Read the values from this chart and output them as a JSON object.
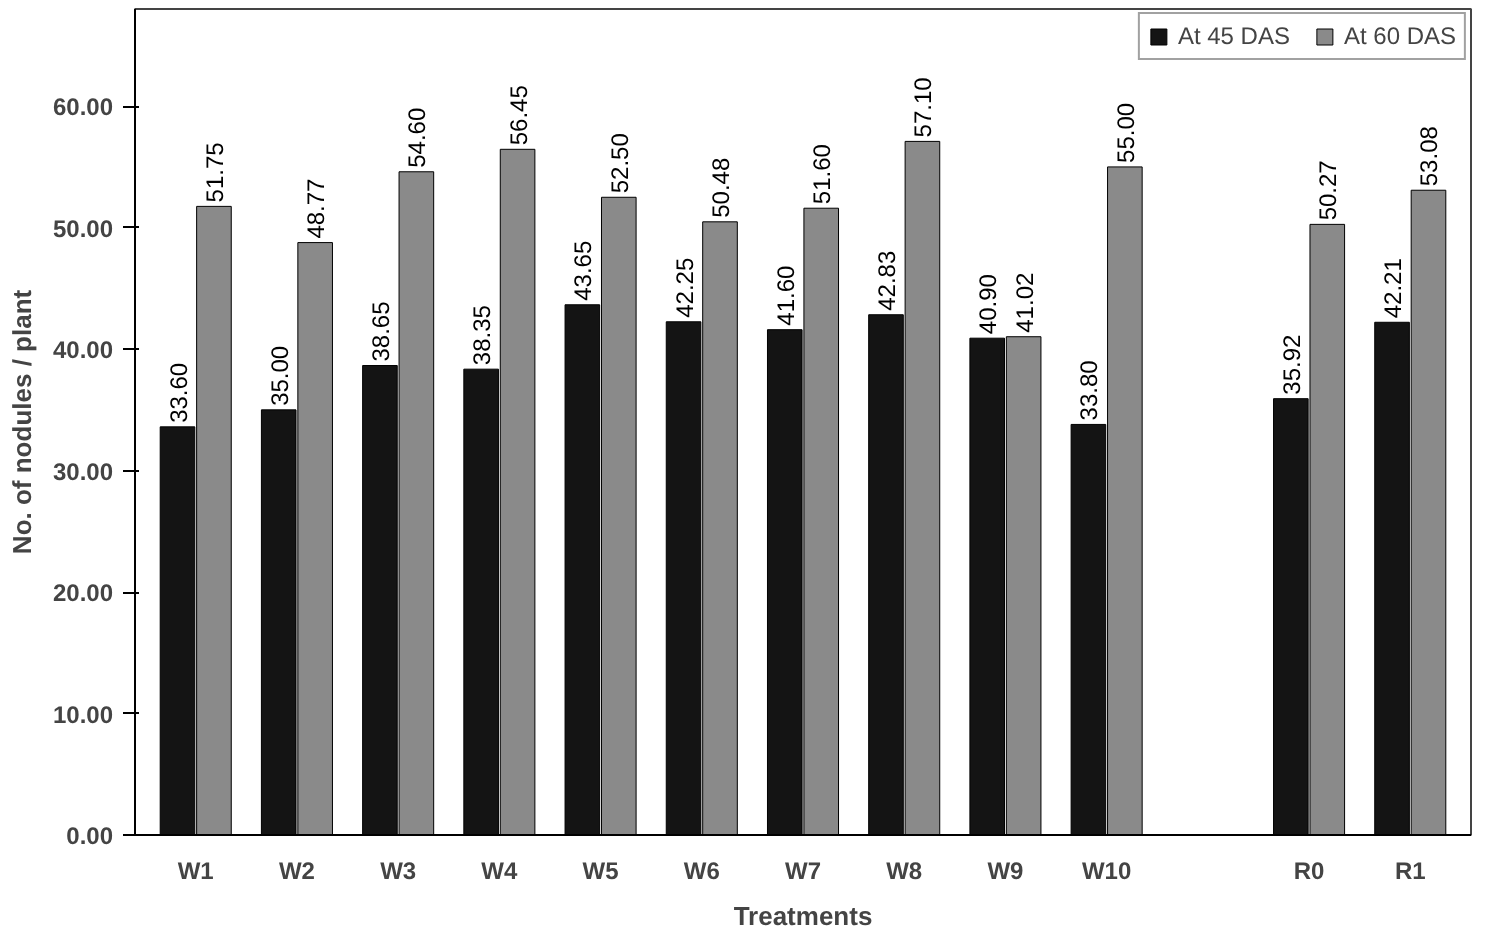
{
  "chart_data": {
    "type": "bar",
    "xlabel": "Treatments",
    "ylabel": "No. of nodules / plant",
    "categories": [
      "W1",
      "W2",
      "W3",
      "W4",
      "W5",
      "W6",
      "W7",
      "W8",
      "W9",
      "W10",
      null,
      "R0",
      "R1"
    ],
    "series": [
      {
        "name": "At 45 DAS",
        "color": "#141414",
        "values": [
          33.6,
          35.0,
          38.65,
          38.35,
          43.65,
          42.25,
          41.6,
          42.83,
          40.9,
          33.8,
          null,
          35.92,
          42.21
        ],
        "value_labels": [
          "33.60",
          "35.00",
          "38.65",
          "38.35",
          "43.65",
          "42.25",
          "41.60",
          "42.83",
          "40.90",
          "33.80",
          null,
          "35.92",
          "42.21"
        ]
      },
      {
        "name": "At 60 DAS",
        "color": "#8a8a8a",
        "values": [
          51.75,
          48.77,
          54.6,
          56.45,
          52.5,
          50.48,
          51.6,
          57.1,
          41.02,
          55.0,
          null,
          50.27,
          53.08
        ],
        "value_labels": [
          "51.75",
          "48.77",
          "54.60",
          "56.45",
          "52.50",
          "50.48",
          "51.60",
          "57.10",
          "41.02",
          "55.00",
          null,
          "50.27",
          "53.08"
        ]
      }
    ],
    "ylim": [
      0,
      68
    ],
    "yticks": [
      {
        "value": 0,
        "label": "0.00"
      },
      {
        "value": 10,
        "label": "10.00"
      },
      {
        "value": 20,
        "label": "20.00"
      },
      {
        "value": 30,
        "label": "30.00"
      },
      {
        "value": 40,
        "label": "40.00"
      },
      {
        "value": 50,
        "label": "50.00"
      },
      {
        "value": 60,
        "label": "60.00"
      }
    ],
    "grid": false,
    "legend": "top right"
  }
}
